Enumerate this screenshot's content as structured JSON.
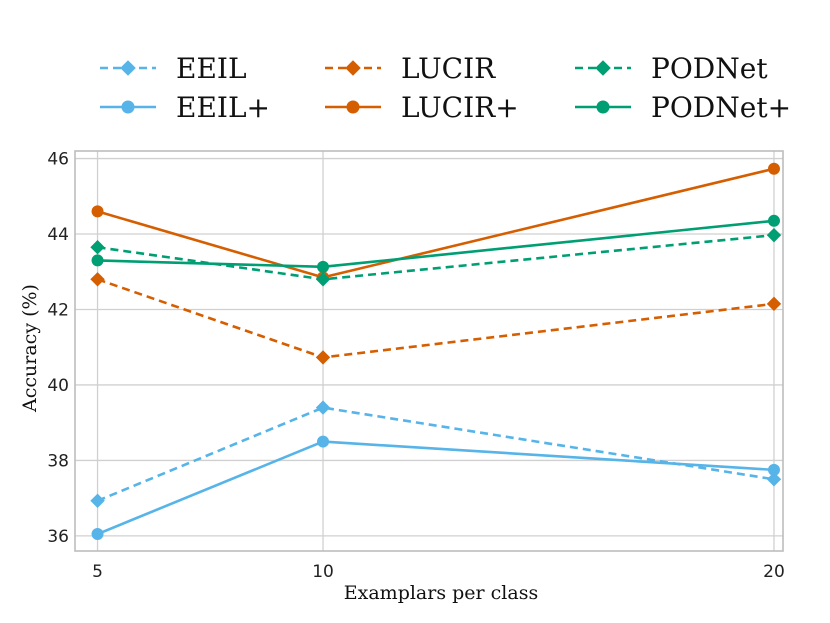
{
  "chart_data": {
    "type": "line",
    "xlabel": "Examplars per class",
    "ylabel": "Accuracy (%)",
    "x": [
      5,
      10,
      20
    ],
    "xticks": [
      "5",
      "10",
      "20"
    ],
    "yticks": [
      "36",
      "38",
      "40",
      "42",
      "44",
      "46"
    ],
    "xlim": [
      4.5,
      20.2
    ],
    "ylim": [
      35.6,
      46.2
    ],
    "grid": true,
    "legend": "top, 3 columns",
    "series": [
      {
        "name": "EEIL",
        "values": [
          36.93,
          39.4,
          37.5
        ],
        "color": "#56b4e9",
        "dashed": true,
        "marker": "diamond"
      },
      {
        "name": "EEIL+",
        "values": [
          36.05,
          38.5,
          37.75
        ],
        "color": "#56b4e9",
        "dashed": false,
        "marker": "circle"
      },
      {
        "name": "LUCIR",
        "values": [
          42.8,
          40.73,
          42.15
        ],
        "color": "#d55e00",
        "dashed": true,
        "marker": "diamond"
      },
      {
        "name": "LUCIR+",
        "values": [
          44.6,
          42.85,
          45.73
        ],
        "color": "#d55e00",
        "dashed": false,
        "marker": "circle"
      },
      {
        "name": "PODNet",
        "values": [
          43.65,
          42.8,
          43.97
        ],
        "color": "#009e73",
        "dashed": true,
        "marker": "diamond"
      },
      {
        "name": "PODNet+",
        "values": [
          43.3,
          43.13,
          44.35
        ],
        "color": "#009e73",
        "dashed": false,
        "marker": "circle"
      }
    ]
  }
}
